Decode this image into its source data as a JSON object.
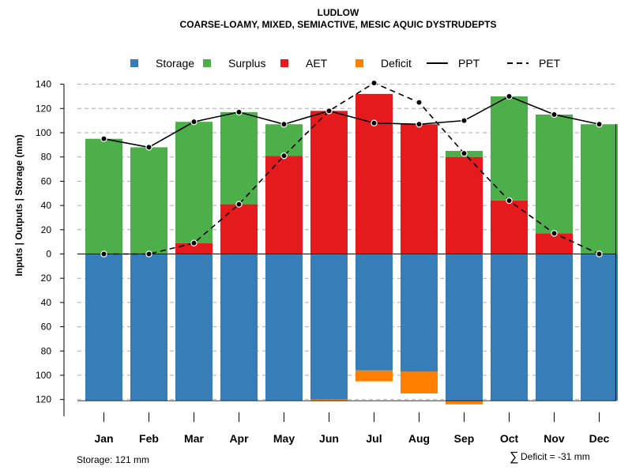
{
  "title": "LUDLOW",
  "subtitle": "COARSE-LOAMY, MIXED, SEMIACTIVE, MESIC AQUIC DYSTRUDEPTS",
  "footer": {
    "storage_note": "Storage: 121 mm",
    "sigma": "∑",
    "deficit_note": "Deficit = -31 mm"
  },
  "colors": {
    "storage": "#377EB8",
    "surplus": "#4DAF4A",
    "aet": "#E41A1C",
    "deficit": "#FF7F00",
    "line": "#000000",
    "grid": "#aaaaaa"
  },
  "chart_data": {
    "type": "bar",
    "title": "LUDLOW",
    "subtitle": "COARSE-LOAMY, MIXED, SEMIACTIVE, MESIC AQUIC DYSTRUDEPTS",
    "ylabel": "Inputs | Outputs | Storage    (mm)",
    "xlabel": "",
    "ylim": [
      -130,
      148
    ],
    "yticks": [
      140,
      120,
      100,
      80,
      60,
      40,
      20,
      0,
      -20,
      -40,
      -60,
      -80,
      -100,
      -120
    ],
    "ytick_labels": [
      "140",
      "120",
      "100",
      "80",
      "60",
      "40",
      "20",
      "0",
      "20",
      "40",
      "60",
      "80",
      "100",
      "120"
    ],
    "grid": true,
    "legend_position": "top",
    "legend": [
      {
        "key": "storage",
        "label": "Storage",
        "kind": "box"
      },
      {
        "key": "surplus",
        "label": "Surplus",
        "kind": "box"
      },
      {
        "key": "aet",
        "label": "AET",
        "kind": "box"
      },
      {
        "key": "deficit",
        "label": "Deficit",
        "kind": "box"
      },
      {
        "key": "ppt",
        "label": "PPT",
        "kind": "solid"
      },
      {
        "key": "pet",
        "label": "PET",
        "kind": "dashed"
      }
    ],
    "categories": [
      "Jan",
      "Feb",
      "Mar",
      "Apr",
      "May",
      "Jun",
      "Jul",
      "Aug",
      "Sep",
      "Oct",
      "Nov",
      "Dec"
    ],
    "series": [
      {
        "name": "AET",
        "key": "aet",
        "values": [
          0,
          0,
          9,
          41,
          81,
          118,
          132,
          107,
          80,
          44,
          17,
          0
        ]
      },
      {
        "name": "Surplus",
        "key": "surplus",
        "values": [
          95,
          88,
          100,
          76,
          26,
          0,
          0,
          0,
          5,
          86,
          98,
          107
        ]
      },
      {
        "name": "Storage",
        "key": "storage",
        "values": [
          -121,
          -121,
          -121,
          -121,
          -121,
          -120,
          -96,
          -97,
          -121,
          -121,
          -121,
          -121
        ]
      },
      {
        "name": "Deficit",
        "key": "deficit",
        "values": [
          0,
          0,
          0,
          0,
          0,
          -1,
          -9,
          -18,
          -3,
          0,
          0,
          0
        ]
      },
      {
        "name": "PPT",
        "key": "ppt",
        "values": [
          95,
          88,
          109,
          117,
          107,
          118,
          108,
          107,
          110,
          130,
          115,
          107
        ]
      },
      {
        "name": "PET",
        "key": "pet",
        "values": [
          0,
          0,
          9,
          41,
          81,
          118,
          141,
          125,
          83,
          44,
          17,
          0
        ]
      }
    ]
  }
}
